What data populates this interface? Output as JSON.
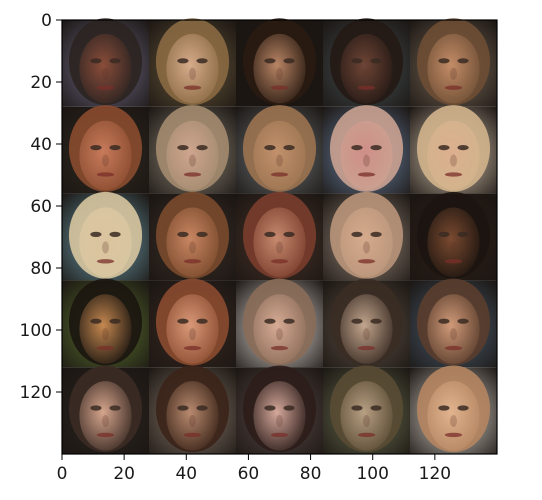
{
  "chart_data": {
    "type": "heatmap",
    "description_kind": "image grid (imshow) of generated faces",
    "grid": {
      "rows": 5,
      "cols": 5
    },
    "xlim": [
      0,
      140
    ],
    "ylim": [
      140,
      0
    ],
    "x_ticks": [
      0,
      20,
      40,
      60,
      80,
      100,
      120
    ],
    "y_ticks": [
      0,
      20,
      40,
      60,
      80,
      100,
      120
    ],
    "x_tick_labels": [
      "0",
      "20",
      "40",
      "60",
      "80",
      "100",
      "120"
    ],
    "y_tick_labels": [
      "0",
      "20",
      "40",
      "60",
      "80",
      "100",
      "120"
    ],
    "title": "",
    "xlabel": "",
    "ylabel": "",
    "cells": [
      {
        "bg": "#6f6a86",
        "face": "#8a4d3a",
        "hair": "#2b2320"
      },
      {
        "bg": "#6b5a3c",
        "face": "#d6ab8b",
        "hair": "#8a6a43"
      },
      {
        "bg": "#1e1813",
        "face": "#b98565",
        "hair": "#2a1b12"
      },
      {
        "bg": "#454f53",
        "face": "#6e4536",
        "hair": "#231814"
      },
      {
        "bg": "#7a6a58",
        "face": "#c38c68",
        "hair": "#6e4e34"
      },
      {
        "bg": "#322a22",
        "face": "#c77b5b",
        "hair": "#8a4b2f"
      },
      {
        "bg": "#8e8778",
        "face": "#cfa58e",
        "hair": "#a38b6f"
      },
      {
        "bg": "#6d7478",
        "face": "#c2916c",
        "hair": "#9b7350"
      },
      {
        "bg": "#6e87a8",
        "face": "#cf8f88",
        "hair": "#caa291"
      },
      {
        "bg": "#d9c7b1",
        "face": "#dcaf8f",
        "hair": "#d1b48c"
      },
      {
        "bg": "#6fa0ae",
        "face": "#dbc49f",
        "hair": "#d8c7a0"
      },
      {
        "bg": "#3a2e27",
        "face": "#c88662",
        "hair": "#7a4a2c"
      },
      {
        "bg": "#4b3429",
        "face": "#c68a6f",
        "hair": "#7a3d2c"
      },
      {
        "bg": "#99897b",
        "face": "#d6aa8d",
        "hair": "#b9957a"
      },
      {
        "bg": "#2c1f17",
        "face": "#7a4a30",
        "hair": "#1c140f"
      },
      {
        "bg": "#5c7630",
        "face": "#c58850",
        "hair": "#1b1510"
      },
      {
        "bg": "#3a2a22",
        "face": "#d99978",
        "hair": "#8a4b30"
      },
      {
        "bg": "#e7e1dd",
        "face": "#d7ab95",
        "hair": "#8a6c58"
      },
      {
        "bg": "#5e5245",
        "face": "#c2a58d",
        "hair": "#3a2c24"
      },
      {
        "bg": "#4b5f72",
        "face": "#d09a79",
        "hair": "#5a3d2c"
      },
      {
        "bg": "#2d2622",
        "face": "#d6a58d",
        "hair": "#3b2b24"
      },
      {
        "bg": "#8a7a6c",
        "face": "#b88a6f",
        "hair": "#3b2418"
      },
      {
        "bg": "#5b4c49",
        "face": "#d5a89b",
        "hair": "#2c1d1a"
      },
      {
        "bg": "#6a7050",
        "face": "#b79f83",
        "hair": "#5a4b34"
      },
      {
        "bg": "#ded7cf",
        "face": "#e1b38f",
        "hair": "#b58561"
      }
    ]
  }
}
